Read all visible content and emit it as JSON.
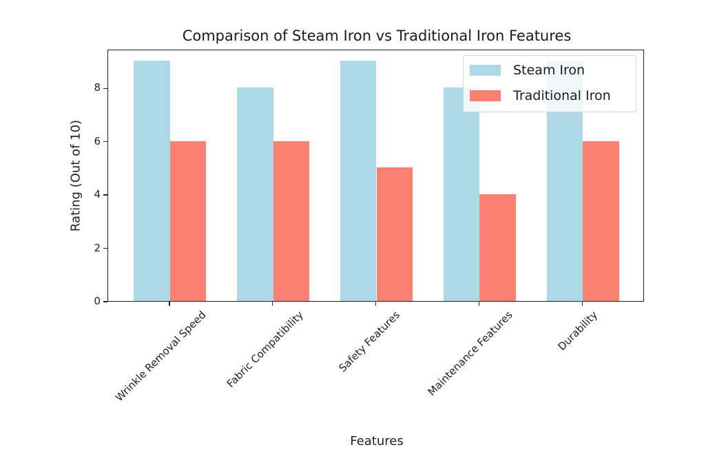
{
  "chart_data": {
    "type": "bar",
    "title": "Comparison of Steam Iron vs Traditional Iron Features",
    "xlabel": "Features",
    "ylabel": "Rating (Out of 10)",
    "categories": [
      "Wrinkle Removal Speed",
      "Fabric Compatibility",
      "Safety Features",
      "Maintenance Features",
      "Durability"
    ],
    "series": [
      {
        "name": "Steam Iron",
        "color": "#add8e6",
        "values": [
          9,
          8,
          9,
          8,
          9
        ]
      },
      {
        "name": "Traditional Iron",
        "color": "#fa8072",
        "values": [
          6,
          6,
          5,
          4,
          6
        ]
      }
    ],
    "ylim": [
      0,
      9.45
    ],
    "yticks": [
      0,
      2,
      4,
      6,
      8
    ],
    "grid": false,
    "legend_position": "upper right",
    "xtick_rotation": 45
  }
}
